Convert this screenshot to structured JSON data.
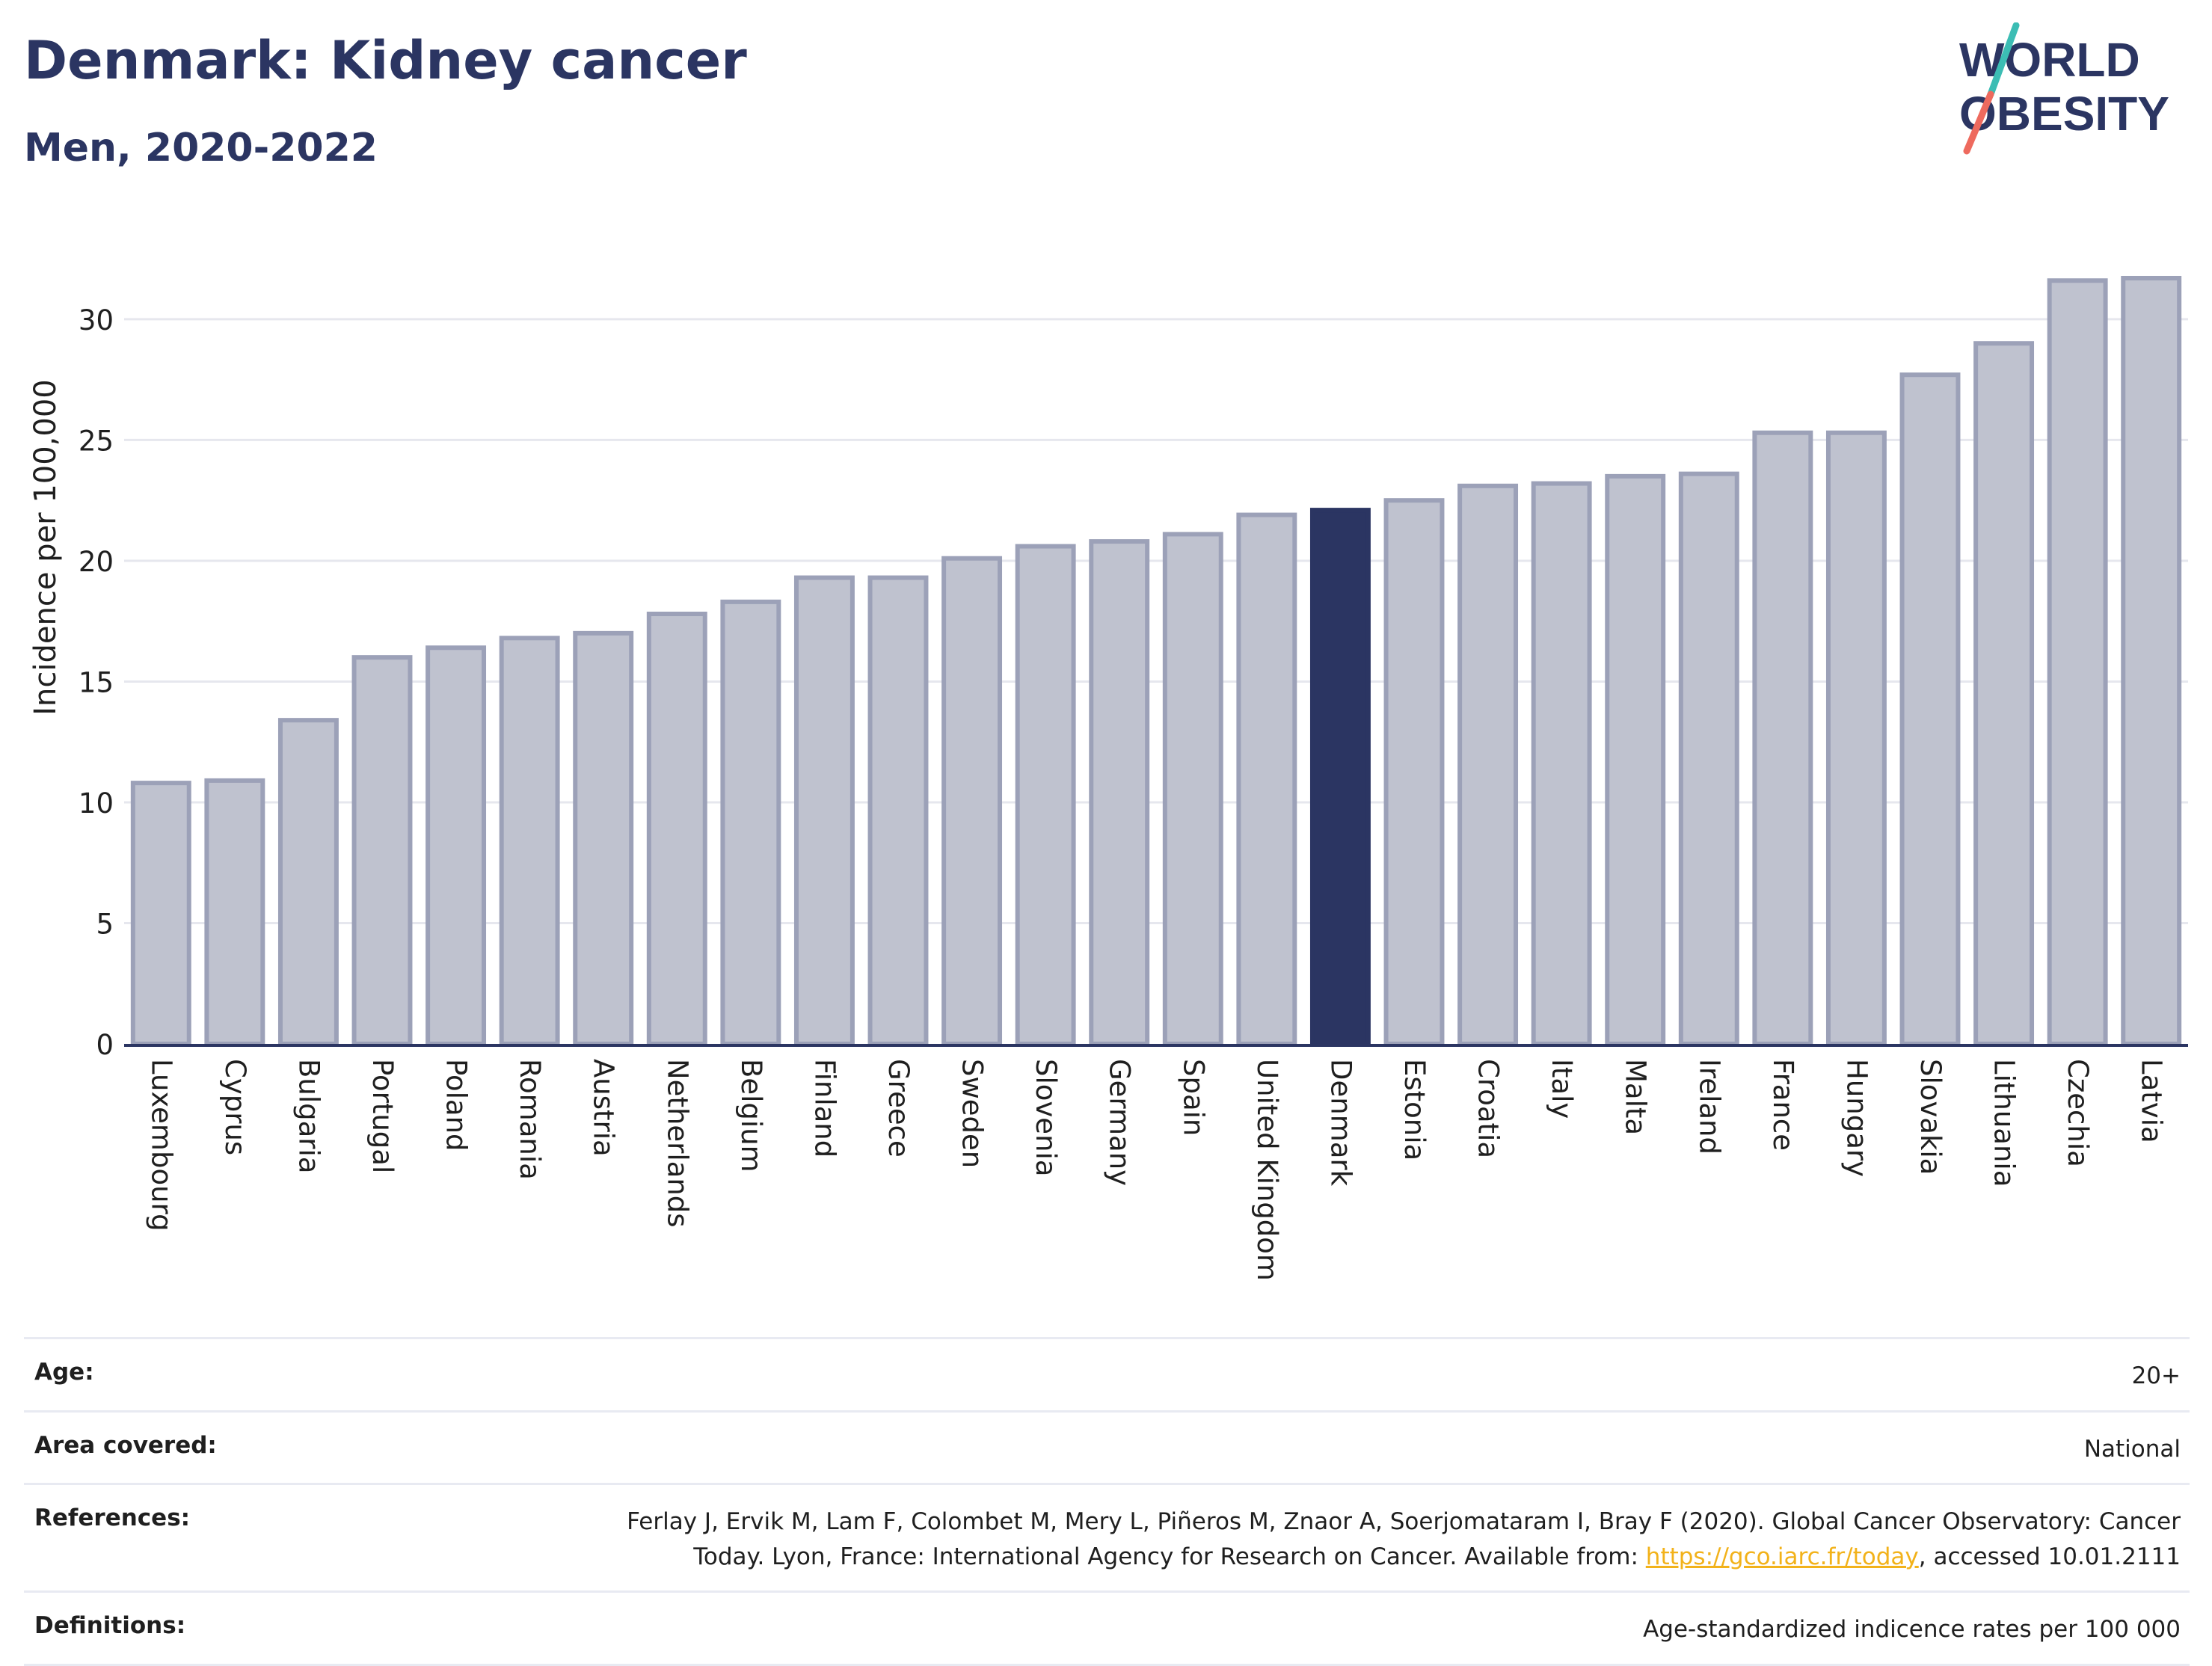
{
  "header": {
    "title": "Denmark: Kidney cancer",
    "subtitle": "Men, 2020-2022"
  },
  "logo": {
    "line1": "WORLD",
    "line2": "OBESITY"
  },
  "chart_data": {
    "type": "bar",
    "ylabel": "Incidence per 100,000",
    "ylim": [
      0,
      33
    ],
    "yticks": [
      0,
      5,
      10,
      15,
      20,
      25,
      30
    ],
    "grid": true,
    "highlight": "Denmark",
    "colors": {
      "bar": "#bfc2cf",
      "bar_border": "#9ca1b8",
      "highlight": "#2b3562",
      "grid": "#e6e7ee",
      "axis": "#2b3562"
    },
    "categories": [
      "Luxembourg",
      "Cyprus",
      "Bulgaria",
      "Portugal",
      "Poland",
      "Romania",
      "Austria",
      "Netherlands",
      "Belgium",
      "Finland",
      "Greece",
      "Sweden",
      "Slovenia",
      "Germany",
      "Spain",
      "United Kingdom",
      "Denmark",
      "Estonia",
      "Croatia",
      "Italy",
      "Malta",
      "Ireland",
      "France",
      "Hungary",
      "Slovakia",
      "Lithuania",
      "Czechia",
      "Latvia"
    ],
    "values": [
      10.8,
      10.9,
      13.4,
      16.0,
      16.4,
      16.8,
      17.0,
      17.8,
      18.3,
      19.3,
      19.3,
      20.1,
      20.6,
      20.8,
      21.1,
      21.9,
      22.1,
      22.5,
      23.1,
      23.2,
      23.5,
      23.6,
      25.3,
      25.3,
      27.7,
      29.0,
      31.6,
      31.7
    ]
  },
  "info": {
    "age": {
      "label": "Age:",
      "value": "20+"
    },
    "area": {
      "label": "Area covered:",
      "value": "National"
    },
    "references": {
      "label": "References:",
      "text_before": "Ferlay J, Ervik M, Lam F, Colombet M, Mery L, Piñeros M, Znaor A, Soerjomataram I, Bray F (2020). Global Cancer Observatory: Cancer Today. Lyon, France: International Agency for Research on Cancer. Available from: ",
      "link_text": "https://gco.iarc.fr/today",
      "text_after": ", accessed 10.01.2111"
    },
    "definitions": {
      "label": "Definitions:",
      "value": "Age-standardized indicence rates per 100 000"
    }
  }
}
